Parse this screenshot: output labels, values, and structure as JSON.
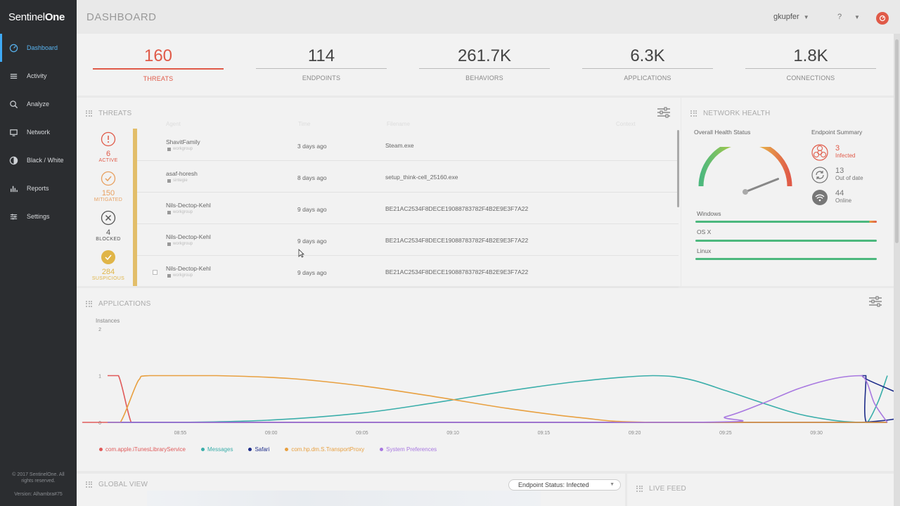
{
  "sidebar": {
    "logo_a": "Sentinel",
    "logo_b": "One",
    "items": [
      {
        "label": "Dashboard"
      },
      {
        "label": "Activity"
      },
      {
        "label": "Analyze"
      },
      {
        "label": "Network"
      },
      {
        "label": "Black / White"
      },
      {
        "label": "Reports"
      },
      {
        "label": "Settings"
      }
    ],
    "copyright_1": "© 2017 SentinelOne. All",
    "copyright_2": "rights reserved.",
    "version": "Version: Alhambra#75"
  },
  "header": {
    "title": "DASHBOARD",
    "user": "gkupfer",
    "help": "?"
  },
  "stats": [
    {
      "value": "160",
      "label": "THREATS"
    },
    {
      "value": "114",
      "label": "ENDPOINTS"
    },
    {
      "value": "261.7K",
      "label": "BEHAVIORS"
    },
    {
      "value": "6.3K",
      "label": "APPLICATIONS"
    },
    {
      "value": "1.8K",
      "label": "CONNECTIONS"
    }
  ],
  "threats": {
    "title": "THREATS",
    "columns": [
      "Agent",
      "Time",
      "Filename",
      "Context"
    ],
    "categories": [
      {
        "count": "6",
        "label": "ACTIVE"
      },
      {
        "count": "150",
        "label": "MITIGATED"
      },
      {
        "count": "4",
        "label": "BLOCKED"
      },
      {
        "count": "284",
        "label": "SUSPICIOUS"
      }
    ],
    "rows": [
      {
        "agent": "ShavitFamily",
        "group": "workgroup",
        "time": "3 days ago",
        "file": "Steam.exe"
      },
      {
        "agent": "asaf-horesh",
        "group": "sintegie",
        "time": "8 days ago",
        "file": "setup_think-cell_25160.exe"
      },
      {
        "agent": "Nils-Dectop-Kehl",
        "group": "workgroup",
        "time": "9 days ago",
        "file": "BE21AC2534F8DECE19088783782F4B2E9E3F7A22"
      },
      {
        "agent": "Nils-Dectop-Kehl",
        "group": "workgroup",
        "time": "9 days ago",
        "file": "BE21AC2534F8DECE19088783782F4B2E9E3F7A22"
      },
      {
        "agent": "Nils-Dectop-Kehl",
        "group": "workgroup",
        "time": "9 days ago",
        "file": "BE21AC2534F8DECE19088783782F4B2E9E3F7A22"
      }
    ]
  },
  "network_health": {
    "title": "NETWORK HEALTH",
    "overall_label": "Overall Health Status",
    "summary_label": "Endpoint Summary",
    "gauge_level": 0.88,
    "summary": [
      {
        "count": "3",
        "label": "Infected",
        "color": "#e05a48",
        "icon": "biohazard-icon"
      },
      {
        "count": "13",
        "label": "Out of date",
        "color": "#777777",
        "icon": "refresh-icon"
      },
      {
        "count": "44",
        "label": "Online",
        "color": "#777777",
        "icon": "wifi-icon"
      }
    ],
    "os": [
      {
        "label": "Windows"
      },
      {
        "label": "OS X"
      },
      {
        "label": "Linux"
      }
    ]
  },
  "applications": {
    "title": "APPLICATIONS"
  },
  "chart_data": {
    "type": "line",
    "ylabel": "Instances",
    "ylim": [
      0,
      2
    ],
    "yticks": [
      "0",
      "1",
      "2"
    ],
    "x_tick_labels": [
      "08:55",
      "09:00",
      "09:05",
      "09:10",
      "09:15",
      "09:20",
      "09:25",
      "09:30"
    ],
    "x_tick_values": [
      535,
      540,
      545,
      550,
      555,
      560,
      565,
      570
    ],
    "x_range": [
      531,
      573.9
    ],
    "series": [
      {
        "name": "com.apple.iTunesLibraryService",
        "color": "#e05a5a",
        "x": [
          531,
          531.6,
          532.3,
          532.8,
          573.9
        ],
        "y": [
          1,
          1,
          0,
          0,
          0
        ]
      },
      {
        "name": "Messages",
        "color": "#3aaeaa",
        "x": [
          531,
          535,
          540,
          545,
          549,
          553,
          557,
          561,
          563,
          565,
          567,
          569,
          571,
          572.3,
          572.8,
          573.4,
          573.9
        ],
        "y": [
          0,
          0,
          0.05,
          0.2,
          0.42,
          0.67,
          0.88,
          1.0,
          0.92,
          0.68,
          0.42,
          0.18,
          0.04,
          0,
          0,
          0.45,
          1
        ]
      },
      {
        "name": "Safari",
        "color": "#1e2d8a",
        "x": [
          531,
          572.5,
          572.52,
          572.72,
          572.74,
          573.9
        ],
        "y": [
          0,
          0,
          1,
          1,
          0,
          0
        ]
      },
      {
        "name": "com.hp.dm.S.TransportProxy",
        "color": "#e8a040",
        "x": [
          531,
          531.7,
          532.7,
          533.3,
          537,
          541,
          545,
          549,
          553,
          557,
          561,
          573.9
        ],
        "y": [
          0,
          0,
          0.9,
          1,
          1,
          0.94,
          0.78,
          0.55,
          0.3,
          0.1,
          0,
          0
        ]
      },
      {
        "name": "System Preferences",
        "color": "#a878e0",
        "x": [
          531,
          563,
          565,
          567,
          569,
          571,
          572.5,
          573.2,
          573.9
        ],
        "y": [
          0,
          0,
          0.12,
          0.4,
          0.72,
          0.94,
          1,
          0.4,
          0
        ]
      }
    ]
  },
  "global_view": {
    "title": "GLOBAL VIEW",
    "filter": "Endpoint Status: Infected"
  },
  "live_feed": {
    "title": "LIVE FEED"
  }
}
